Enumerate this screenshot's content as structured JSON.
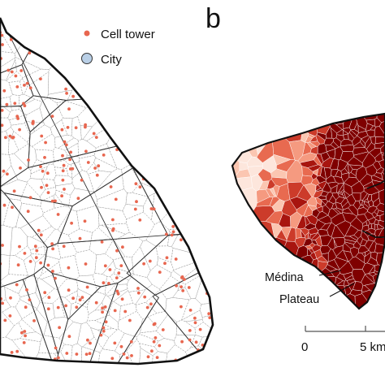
{
  "panel_b_label": "b",
  "legend": {
    "cell_tower": {
      "label": "Cell tower",
      "color": "#e8664f"
    },
    "city": {
      "label": "City",
      "color": "#b9cfe6"
    }
  },
  "places": {
    "medina": "Médina",
    "plateau": "Plateau"
  },
  "scale_bar": {
    "start_label": "0",
    "end_label": "5 km"
  },
  "colors": {
    "border": "#111111",
    "tower": "#e8664f",
    "choropleth_dark": "#7f0000",
    "choropleth_light": "#fde6dc"
  }
}
